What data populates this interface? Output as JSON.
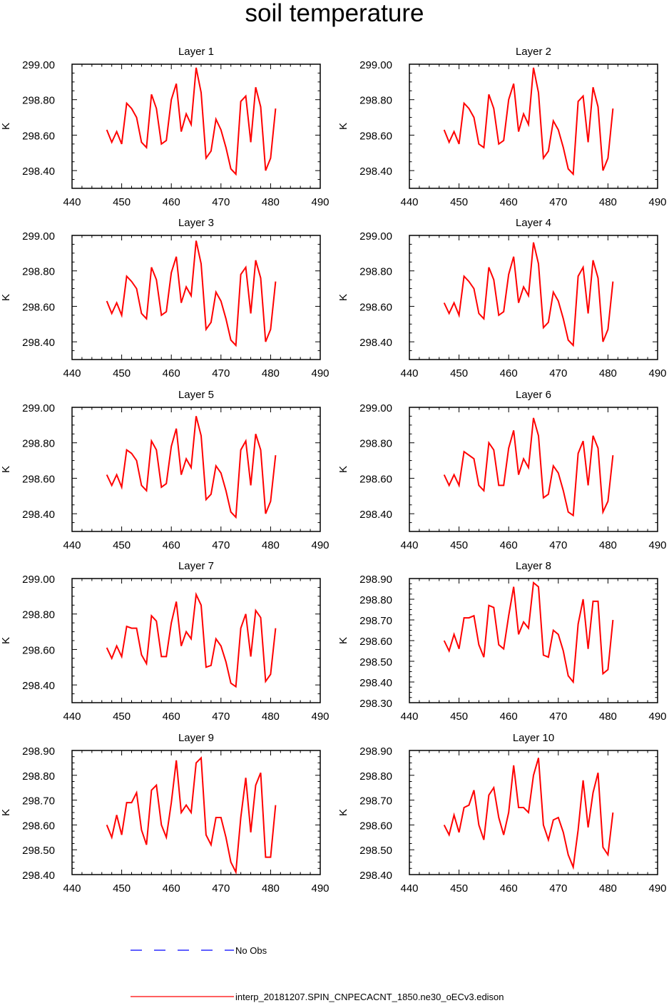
{
  "figure": {
    "title": "soil temperature",
    "legend": [
      {
        "label": "No Obs",
        "color": "#0000ff",
        "dash": true
      },
      {
        "label": "interp_20181207.SPIN_CNPECACNT_1850.ne30_oECv3.edison",
        "color": "#ff0000",
        "dash": false
      }
    ]
  },
  "chart_data": [
    {
      "type": "line",
      "title": "Layer 1",
      "ylabel": "K",
      "xlim": [
        440,
        490
      ],
      "ylim": [
        298.3,
        299.0
      ],
      "xticks": [
        440,
        450,
        460,
        470,
        480,
        490
      ],
      "yticks": [
        298.4,
        298.6,
        298.8,
        299.0
      ],
      "ytick_labels": [
        "298.40",
        "298.60",
        "298.80",
        "299.00"
      ],
      "series": [
        {
          "color": "#ff0000",
          "x": [
            447,
            448,
            449,
            450,
            451,
            452,
            453,
            454,
            455,
            456,
            457,
            458,
            459,
            460,
            461,
            462,
            463,
            464,
            465,
            466,
            467,
            468,
            469,
            470,
            471,
            472,
            473,
            474,
            475,
            476,
            477,
            478,
            479,
            480,
            481
          ],
          "y": [
            298.63,
            298.56,
            298.62,
            298.55,
            298.78,
            298.75,
            298.7,
            298.56,
            298.53,
            298.83,
            298.75,
            298.55,
            298.57,
            298.8,
            298.89,
            298.62,
            298.72,
            298.66,
            298.98,
            298.84,
            298.47,
            298.51,
            298.69,
            298.63,
            298.53,
            298.41,
            298.38,
            298.79,
            298.82,
            298.56,
            298.87,
            298.76,
            298.4,
            298.47,
            298.75
          ]
        }
      ]
    },
    {
      "type": "line",
      "title": "Layer 2",
      "ylabel": "K",
      "xlim": [
        440,
        490
      ],
      "ylim": [
        298.3,
        299.0
      ],
      "xticks": [
        440,
        450,
        460,
        470,
        480,
        490
      ],
      "yticks": [
        298.4,
        298.6,
        298.8,
        299.0
      ],
      "ytick_labels": [
        "298.40",
        "298.60",
        "298.80",
        "299.00"
      ],
      "series": [
        {
          "color": "#ff0000",
          "x": [
            447,
            448,
            449,
            450,
            451,
            452,
            453,
            454,
            455,
            456,
            457,
            458,
            459,
            460,
            461,
            462,
            463,
            464,
            465,
            466,
            467,
            468,
            469,
            470,
            471,
            472,
            473,
            474,
            475,
            476,
            477,
            478,
            479,
            480,
            481
          ],
          "y": [
            298.63,
            298.56,
            298.62,
            298.55,
            298.78,
            298.75,
            298.7,
            298.55,
            298.53,
            298.83,
            298.75,
            298.55,
            298.57,
            298.8,
            298.89,
            298.62,
            298.72,
            298.66,
            298.98,
            298.84,
            298.47,
            298.51,
            298.68,
            298.63,
            298.53,
            298.41,
            298.38,
            298.79,
            298.82,
            298.56,
            298.87,
            298.76,
            298.4,
            298.47,
            298.75
          ]
        }
      ]
    },
    {
      "type": "line",
      "title": "Layer 3",
      "ylabel": "K",
      "xlim": [
        440,
        490
      ],
      "ylim": [
        298.3,
        299.0
      ],
      "xticks": [
        440,
        450,
        460,
        470,
        480,
        490
      ],
      "yticks": [
        298.4,
        298.6,
        298.8,
        299.0
      ],
      "ytick_labels": [
        "298.40",
        "298.60",
        "298.80",
        "299.00"
      ],
      "series": [
        {
          "color": "#ff0000",
          "x": [
            447,
            448,
            449,
            450,
            451,
            452,
            453,
            454,
            455,
            456,
            457,
            458,
            459,
            460,
            461,
            462,
            463,
            464,
            465,
            466,
            467,
            468,
            469,
            470,
            471,
            472,
            473,
            474,
            475,
            476,
            477,
            478,
            479,
            480,
            481
          ],
          "y": [
            298.63,
            298.56,
            298.62,
            298.55,
            298.77,
            298.74,
            298.7,
            298.56,
            298.53,
            298.82,
            298.75,
            298.55,
            298.57,
            298.79,
            298.88,
            298.62,
            298.71,
            298.66,
            298.97,
            298.84,
            298.47,
            298.51,
            298.68,
            298.63,
            298.53,
            298.41,
            298.38,
            298.78,
            298.82,
            298.56,
            298.86,
            298.76,
            298.4,
            298.47,
            298.74
          ]
        }
      ]
    },
    {
      "type": "line",
      "title": "Layer 4",
      "ylabel": "K",
      "xlim": [
        440,
        490
      ],
      "ylim": [
        298.3,
        299.0
      ],
      "xticks": [
        440,
        450,
        460,
        470,
        480,
        490
      ],
      "yticks": [
        298.4,
        298.6,
        298.8,
        299.0
      ],
      "ytick_labels": [
        "298.40",
        "298.60",
        "298.80",
        "299.00"
      ],
      "series": [
        {
          "color": "#ff0000",
          "x": [
            447,
            448,
            449,
            450,
            451,
            452,
            453,
            454,
            455,
            456,
            457,
            458,
            459,
            460,
            461,
            462,
            463,
            464,
            465,
            466,
            467,
            468,
            469,
            470,
            471,
            472,
            473,
            474,
            475,
            476,
            477,
            478,
            479,
            480,
            481
          ],
          "y": [
            298.62,
            298.56,
            298.62,
            298.55,
            298.77,
            298.74,
            298.7,
            298.56,
            298.53,
            298.82,
            298.75,
            298.55,
            298.57,
            298.78,
            298.88,
            298.62,
            298.71,
            298.66,
            298.96,
            298.84,
            298.48,
            298.51,
            298.68,
            298.63,
            298.53,
            298.41,
            298.38,
            298.77,
            298.82,
            298.56,
            298.86,
            298.76,
            298.4,
            298.47,
            298.74
          ]
        }
      ]
    },
    {
      "type": "line",
      "title": "Layer 5",
      "ylabel": "K",
      "xlim": [
        440,
        490
      ],
      "ylim": [
        298.3,
        299.0
      ],
      "xticks": [
        440,
        450,
        460,
        470,
        480,
        490
      ],
      "yticks": [
        298.4,
        298.6,
        298.8,
        299.0
      ],
      "ytick_labels": [
        "298.40",
        "298.60",
        "298.80",
        "299.00"
      ],
      "series": [
        {
          "color": "#ff0000",
          "x": [
            447,
            448,
            449,
            450,
            451,
            452,
            453,
            454,
            455,
            456,
            457,
            458,
            459,
            460,
            461,
            462,
            463,
            464,
            465,
            466,
            467,
            468,
            469,
            470,
            471,
            472,
            473,
            474,
            475,
            476,
            477,
            478,
            479,
            480,
            481
          ],
          "y": [
            298.62,
            298.56,
            298.62,
            298.55,
            298.76,
            298.74,
            298.7,
            298.56,
            298.53,
            298.81,
            298.76,
            298.55,
            298.57,
            298.78,
            298.88,
            298.62,
            298.71,
            298.66,
            298.95,
            298.84,
            298.48,
            298.51,
            298.67,
            298.63,
            298.53,
            298.41,
            298.38,
            298.76,
            298.81,
            298.56,
            298.85,
            298.76,
            298.4,
            298.47,
            298.73
          ]
        }
      ]
    },
    {
      "type": "line",
      "title": "Layer 6",
      "ylabel": "K",
      "xlim": [
        440,
        490
      ],
      "ylim": [
        298.3,
        299.0
      ],
      "xticks": [
        440,
        450,
        460,
        470,
        480,
        490
      ],
      "yticks": [
        298.4,
        298.6,
        298.8,
        299.0
      ],
      "ytick_labels": [
        "298.40",
        "298.60",
        "298.80",
        "299.00"
      ],
      "series": [
        {
          "color": "#ff0000",
          "x": [
            447,
            448,
            449,
            450,
            451,
            452,
            453,
            454,
            455,
            456,
            457,
            458,
            459,
            460,
            461,
            462,
            463,
            464,
            465,
            466,
            467,
            468,
            469,
            470,
            471,
            472,
            473,
            474,
            475,
            476,
            477,
            478,
            479,
            480,
            481
          ],
          "y": [
            298.62,
            298.56,
            298.62,
            298.56,
            298.75,
            298.73,
            298.71,
            298.56,
            298.53,
            298.8,
            298.76,
            298.56,
            298.56,
            298.77,
            298.87,
            298.62,
            298.71,
            298.66,
            298.94,
            298.84,
            298.49,
            298.51,
            298.67,
            298.63,
            298.53,
            298.41,
            298.39,
            298.74,
            298.81,
            298.56,
            298.84,
            298.77,
            298.41,
            298.47,
            298.73
          ]
        }
      ]
    },
    {
      "type": "line",
      "title": "Layer 7",
      "ylabel": "K",
      "xlim": [
        440,
        490
      ],
      "ylim": [
        298.3,
        299.0
      ],
      "xticks": [
        440,
        450,
        460,
        470,
        480,
        490
      ],
      "yticks": [
        298.4,
        298.6,
        298.8,
        299.0
      ],
      "ytick_labels": [
        "298.40",
        "298.60",
        "298.80",
        "299.00"
      ],
      "series": [
        {
          "color": "#ff0000",
          "x": [
            447,
            448,
            449,
            450,
            451,
            452,
            453,
            454,
            455,
            456,
            457,
            458,
            459,
            460,
            461,
            462,
            463,
            464,
            465,
            466,
            467,
            468,
            469,
            470,
            471,
            472,
            473,
            474,
            475,
            476,
            477,
            478,
            479,
            480,
            481
          ],
          "y": [
            298.61,
            298.55,
            298.62,
            298.56,
            298.73,
            298.72,
            298.72,
            298.57,
            298.52,
            298.79,
            298.76,
            298.56,
            298.56,
            298.75,
            298.87,
            298.62,
            298.7,
            298.66,
            298.91,
            298.85,
            298.5,
            298.51,
            298.66,
            298.62,
            298.53,
            298.41,
            298.39,
            298.72,
            298.8,
            298.56,
            298.82,
            298.78,
            298.42,
            298.46,
            298.72
          ]
        }
      ]
    },
    {
      "type": "line",
      "title": "Layer 8",
      "ylabel": "K",
      "xlim": [
        440,
        490
      ],
      "ylim": [
        298.3,
        298.9
      ],
      "xticks": [
        440,
        450,
        460,
        470,
        480,
        490
      ],
      "yticks": [
        298.3,
        298.4,
        298.5,
        298.6,
        298.7,
        298.8,
        298.9
      ],
      "ytick_labels": [
        "298.30",
        "298.40",
        "298.50",
        "298.60",
        "298.70",
        "298.80",
        "298.90"
      ],
      "series": [
        {
          "color": "#ff0000",
          "x": [
            447,
            448,
            449,
            450,
            451,
            452,
            453,
            454,
            455,
            456,
            457,
            458,
            459,
            460,
            461,
            462,
            463,
            464,
            465,
            466,
            467,
            468,
            469,
            470,
            471,
            472,
            473,
            474,
            475,
            476,
            477,
            478,
            479,
            480,
            481
          ],
          "y": [
            298.6,
            298.55,
            298.63,
            298.56,
            298.71,
            298.71,
            298.72,
            298.58,
            298.52,
            298.77,
            298.76,
            298.58,
            298.56,
            298.72,
            298.86,
            298.63,
            298.69,
            298.66,
            298.88,
            298.86,
            298.53,
            298.52,
            298.65,
            298.63,
            298.55,
            298.43,
            298.4,
            298.68,
            298.8,
            298.56,
            298.79,
            298.79,
            298.44,
            298.46,
            298.7
          ]
        }
      ]
    },
    {
      "type": "line",
      "title": "Layer 9",
      "ylabel": "K",
      "xlim": [
        440,
        490
      ],
      "ylim": [
        298.4,
        298.9
      ],
      "xticks": [
        440,
        450,
        460,
        470,
        480,
        490
      ],
      "yticks": [
        298.4,
        298.5,
        298.6,
        298.7,
        298.8,
        298.9
      ],
      "ytick_labels": [
        "298.40",
        "298.50",
        "298.60",
        "298.70",
        "298.80",
        "298.90"
      ],
      "series": [
        {
          "color": "#ff0000",
          "x": [
            447,
            448,
            449,
            450,
            451,
            452,
            453,
            454,
            455,
            456,
            457,
            458,
            459,
            460,
            461,
            462,
            463,
            464,
            465,
            466,
            467,
            468,
            469,
            470,
            471,
            472,
            473,
            474,
            475,
            476,
            477,
            478,
            479,
            480,
            481
          ],
          "y": [
            298.6,
            298.55,
            298.64,
            298.56,
            298.69,
            298.69,
            298.73,
            298.58,
            298.52,
            298.74,
            298.76,
            298.6,
            298.55,
            298.69,
            298.86,
            298.65,
            298.68,
            298.65,
            298.85,
            298.87,
            298.56,
            298.52,
            298.63,
            298.63,
            298.55,
            298.45,
            298.41,
            298.63,
            298.79,
            298.57,
            298.76,
            298.81,
            298.47,
            298.47,
            298.68
          ]
        }
      ]
    },
    {
      "type": "line",
      "title": "Layer 10",
      "ylabel": "K",
      "xlim": [
        440,
        490
      ],
      "ylim": [
        298.4,
        298.9
      ],
      "xticks": [
        440,
        450,
        460,
        470,
        480,
        490
      ],
      "yticks": [
        298.4,
        298.5,
        298.6,
        298.7,
        298.8,
        298.9
      ],
      "ytick_labels": [
        "298.40",
        "298.50",
        "298.60",
        "298.70",
        "298.80",
        "298.90"
      ],
      "series": [
        {
          "color": "#ff0000",
          "x": [
            447,
            448,
            449,
            450,
            451,
            452,
            453,
            454,
            455,
            456,
            457,
            458,
            459,
            460,
            461,
            462,
            463,
            464,
            465,
            466,
            467,
            468,
            469,
            470,
            471,
            472,
            473,
            474,
            475,
            476,
            477,
            478,
            479,
            480,
            481
          ],
          "y": [
            298.6,
            298.56,
            298.64,
            298.57,
            298.67,
            298.68,
            298.74,
            298.6,
            298.54,
            298.72,
            298.75,
            298.63,
            298.56,
            298.65,
            298.84,
            298.67,
            298.67,
            298.65,
            298.8,
            298.87,
            298.6,
            298.54,
            298.62,
            298.63,
            298.57,
            298.48,
            298.43,
            298.58,
            298.78,
            298.59,
            298.73,
            298.81,
            298.51,
            298.48,
            298.65
          ]
        }
      ]
    }
  ]
}
